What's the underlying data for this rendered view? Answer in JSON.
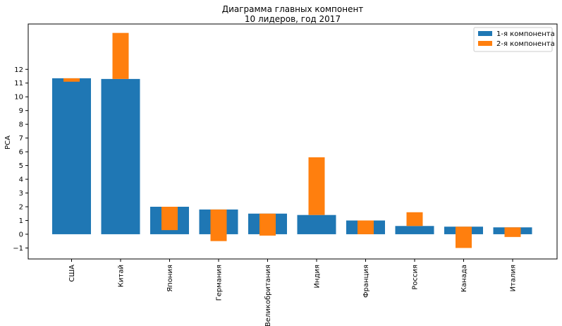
{
  "chart_data": {
    "type": "bar",
    "title": "Диаграмма главных компонент",
    "subtitle": "10 лидеров, год 2017",
    "xlabel": "",
    "ylabel": "PCA",
    "ylim": [
      -1.8,
      15.3
    ],
    "yticks": [
      -1,
      0,
      1,
      2,
      3,
      4,
      5,
      6,
      7,
      8,
      9,
      10,
      11,
      12
    ],
    "categories": [
      "США",
      "Китай",
      "Япония",
      "Германия",
      "Великобритания",
      "Индия",
      "Франция",
      "Россия",
      "Канада",
      "Италия"
    ],
    "series": [
      {
        "name": "1-я компонента",
        "color": "#1f77b4",
        "values": [
          11.35,
          11.3,
          2.0,
          1.8,
          1.5,
          1.4,
          1.0,
          0.6,
          0.55,
          0.5
        ]
      },
      {
        "name": "2-я компонента",
        "color": "#ff7f0e",
        "base": "series0",
        "values": [
          -0.25,
          3.35,
          -1.7,
          -2.3,
          -1.6,
          4.2,
          0.0,
          1.0,
          -1.55,
          -0.7
        ]
      }
    ],
    "legend": "top-right",
    "grid": false
  }
}
